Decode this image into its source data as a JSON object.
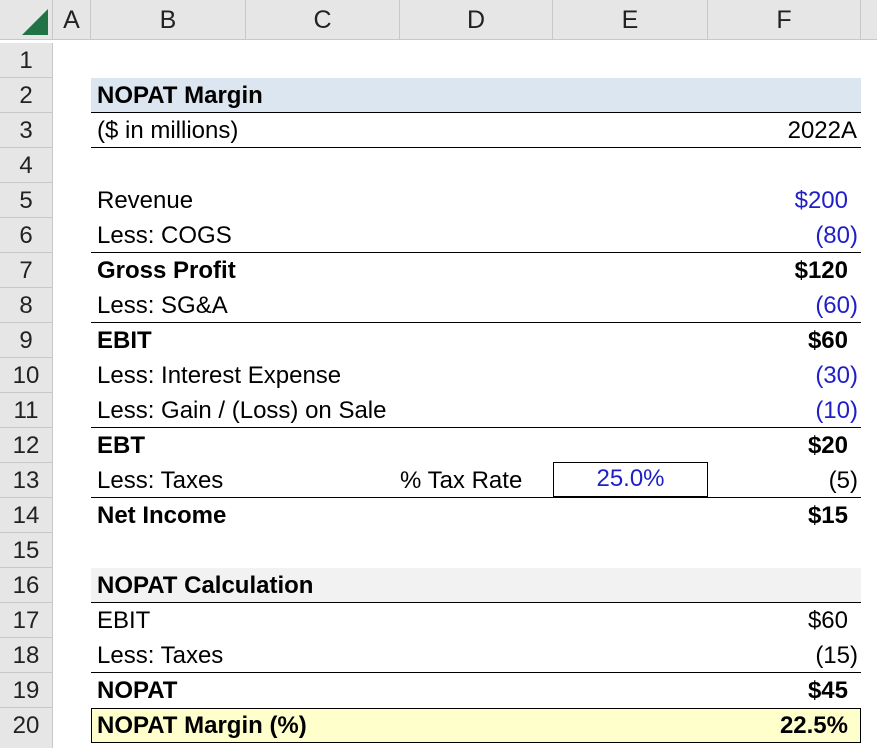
{
  "columns": [
    "A",
    "B",
    "C",
    "D",
    "E",
    "F"
  ],
  "rows": [
    "1",
    "2",
    "3",
    "4",
    "5",
    "6",
    "7",
    "8",
    "9",
    "10",
    "11",
    "12",
    "13",
    "14",
    "15",
    "16",
    "17",
    "18",
    "19",
    "20"
  ],
  "title": "NOPAT Margin",
  "subtitle": "($ in millions)",
  "period": "2022A",
  "income_statement": [
    {
      "label": "Revenue",
      "value": "$200"
    },
    {
      "label": "Less: COGS",
      "value": "(80)"
    },
    {
      "label": "Gross Profit",
      "value": "$120"
    },
    {
      "label": "Less: SG&A",
      "value": "(60)"
    },
    {
      "label": "EBIT",
      "value": "$60"
    },
    {
      "label": "Less: Interest Expense",
      "value": "(30)"
    },
    {
      "label": "Less: Gain / (Loss) on Sale",
      "value": "(10)"
    },
    {
      "label": "EBT",
      "value": "$20"
    },
    {
      "label": "Less: Taxes",
      "value": "(5)"
    },
    {
      "label": "Net Income",
      "value": "$15"
    }
  ],
  "tax_rate": {
    "label": "% Tax Rate",
    "value": "25.0%"
  },
  "nopat_section": {
    "title": "NOPAT Calculation",
    "items": [
      {
        "label": "EBIT",
        "value": "$60"
      },
      {
        "label": "Less: Taxes",
        "value": "(15)"
      },
      {
        "label": "NOPAT",
        "value": "$45"
      }
    ]
  },
  "nopat_margin": {
    "label": "NOPAT Margin (%)",
    "value": "22.5%"
  },
  "colors": {
    "header_fill": "#dce6f1",
    "section_fill": "#f2f2f2",
    "highlight_fill": "#ffffcc",
    "input_blue": "#1f1fc8",
    "excel_green": "#217346"
  }
}
